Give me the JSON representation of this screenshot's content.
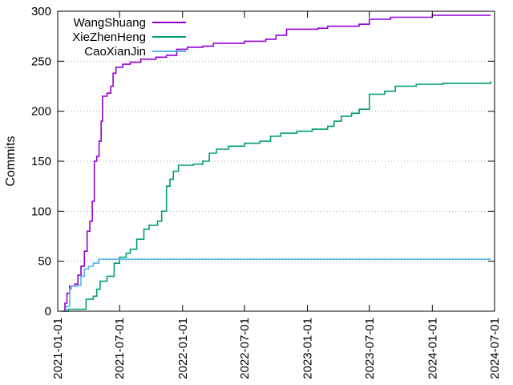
{
  "chart_data": {
    "type": "line",
    "title": "",
    "xlabel": "",
    "ylabel": "Commits",
    "ylim": [
      0,
      300
    ],
    "xlim": [
      "2021-01-01",
      "2024-07-01"
    ],
    "yticks": [
      0,
      50,
      100,
      150,
      200,
      250,
      300
    ],
    "xticks": [
      "2021-01-01",
      "2021-07-01",
      "2022-01-01",
      "2022-07-01",
      "2023-01-01",
      "2023-07-01",
      "2024-01-01",
      "2024-07-01"
    ],
    "grid": "horizontal dotted",
    "legend_position": "top-left",
    "series": [
      {
        "name": "WangShuang",
        "color": "#9400d3",
        "points": [
          [
            "2021-01-15",
            0
          ],
          [
            "2021-01-22",
            8
          ],
          [
            "2021-01-28",
            18
          ],
          [
            "2021-02-05",
            25
          ],
          [
            "2021-02-20",
            27
          ],
          [
            "2021-03-01",
            36
          ],
          [
            "2021-03-10",
            45
          ],
          [
            "2021-03-20",
            60
          ],
          [
            "2021-03-28",
            80
          ],
          [
            "2021-04-05",
            90
          ],
          [
            "2021-04-12",
            110
          ],
          [
            "2021-04-18",
            150
          ],
          [
            "2021-04-25",
            155
          ],
          [
            "2021-05-02",
            170
          ],
          [
            "2021-05-08",
            190
          ],
          [
            "2021-05-12",
            215
          ],
          [
            "2021-05-25",
            218
          ],
          [
            "2021-06-05",
            225
          ],
          [
            "2021-06-12",
            238
          ],
          [
            "2021-06-20",
            244
          ],
          [
            "2021-07-10",
            247
          ],
          [
            "2021-08-01",
            249
          ],
          [
            "2021-09-01",
            252
          ],
          [
            "2021-10-15",
            254
          ],
          [
            "2021-11-15",
            256
          ],
          [
            "2021-12-15",
            262
          ],
          [
            "2022-01-15",
            264
          ],
          [
            "2022-03-01",
            265
          ],
          [
            "2022-04-01",
            268
          ],
          [
            "2022-07-01",
            270
          ],
          [
            "2022-09-01",
            272
          ],
          [
            "2022-10-01",
            276
          ],
          [
            "2022-11-01",
            282
          ],
          [
            "2023-02-01",
            283
          ],
          [
            "2023-03-01",
            285
          ],
          [
            "2023-06-01",
            287
          ],
          [
            "2023-07-01",
            292
          ],
          [
            "2023-09-01",
            294
          ],
          [
            "2024-01-01",
            296
          ],
          [
            "2024-06-20",
            296
          ]
        ]
      },
      {
        "name": "XieZhenHeng",
        "color": "#009e73",
        "points": [
          [
            "2021-01-20",
            0
          ],
          [
            "2021-02-01",
            2
          ],
          [
            "2021-03-20",
            2
          ],
          [
            "2021-03-25",
            12
          ],
          [
            "2021-04-15",
            15
          ],
          [
            "2021-04-25",
            22
          ],
          [
            "2021-05-05",
            30
          ],
          [
            "2021-05-25",
            35
          ],
          [
            "2021-06-15",
            48
          ],
          [
            "2021-07-01",
            54
          ],
          [
            "2021-07-20",
            58
          ],
          [
            "2021-08-01",
            62
          ],
          [
            "2021-08-20",
            72
          ],
          [
            "2021-09-10",
            82
          ],
          [
            "2021-09-25",
            86
          ],
          [
            "2021-10-20",
            90
          ],
          [
            "2021-11-01",
            100
          ],
          [
            "2021-11-15",
            125
          ],
          [
            "2021-11-25",
            132
          ],
          [
            "2021-12-05",
            140
          ],
          [
            "2021-12-20",
            146
          ],
          [
            "2022-02-01",
            147
          ],
          [
            "2022-03-01",
            150
          ],
          [
            "2022-03-20",
            158
          ],
          [
            "2022-04-10",
            162
          ],
          [
            "2022-05-15",
            165
          ],
          [
            "2022-07-01",
            168
          ],
          [
            "2022-08-15",
            170
          ],
          [
            "2022-09-15",
            175
          ],
          [
            "2022-10-15",
            178
          ],
          [
            "2022-12-01",
            180
          ],
          [
            "2023-01-15",
            182
          ],
          [
            "2023-03-01",
            185
          ],
          [
            "2023-03-20",
            190
          ],
          [
            "2023-04-10",
            195
          ],
          [
            "2023-05-10",
            198
          ],
          [
            "2023-06-01",
            202
          ],
          [
            "2023-07-01",
            217
          ],
          [
            "2023-08-15",
            220
          ],
          [
            "2023-09-15",
            225
          ],
          [
            "2023-11-15",
            227
          ],
          [
            "2024-02-01",
            228
          ],
          [
            "2024-06-20",
            230
          ]
        ]
      },
      {
        "name": "CaoXianJin",
        "color": "#56b4e9",
        "points": [
          [
            "2021-01-10",
            0
          ],
          [
            "2021-01-25",
            5
          ],
          [
            "2021-02-05",
            22
          ],
          [
            "2021-02-10",
            25
          ],
          [
            "2021-03-01",
            26
          ],
          [
            "2021-03-10",
            35
          ],
          [
            "2021-03-20",
            42
          ],
          [
            "2021-04-01",
            45
          ],
          [
            "2021-04-15",
            48
          ],
          [
            "2021-05-01",
            52
          ],
          [
            "2021-06-01",
            52
          ],
          [
            "2024-06-20",
            52
          ]
        ]
      }
    ]
  }
}
